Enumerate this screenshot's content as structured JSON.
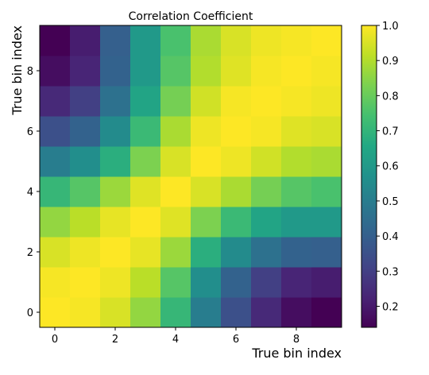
{
  "chart_data": {
    "type": "heatmap",
    "title": "Correlation Coefficient",
    "xlabel": "True bin index",
    "ylabel": "True bin index",
    "x_ticks": [
      0,
      2,
      4,
      6,
      8
    ],
    "y_ticks": [
      0,
      2,
      4,
      6,
      8
    ],
    "colorbar": {
      "colormap": "viridis",
      "range": [
        0.14,
        1.0
      ],
      "ticks": [
        0.2,
        0.3,
        0.4,
        0.5,
        0.6,
        0.7,
        0.8,
        0.9,
        1.0
      ],
      "tick_labels": [
        "0.2",
        "0.3",
        "0.4",
        "0.5",
        "0.6",
        "0.7",
        "0.8",
        "0.9",
        "1.0"
      ]
    },
    "origin": "lower",
    "matrix": [
      [
        1.0,
        0.99,
        0.95,
        0.86,
        0.71,
        0.5,
        0.35,
        0.24,
        0.17,
        0.14
      ],
      [
        0.99,
        1.0,
        0.98,
        0.91,
        0.77,
        0.56,
        0.41,
        0.3,
        0.23,
        0.21
      ],
      [
        0.95,
        0.98,
        1.0,
        0.97,
        0.87,
        0.68,
        0.55,
        0.46,
        0.41,
        0.4
      ],
      [
        0.86,
        0.91,
        0.97,
        1.0,
        0.96,
        0.83,
        0.72,
        0.64,
        0.6,
        0.6
      ],
      [
        0.71,
        0.77,
        0.87,
        0.96,
        1.0,
        0.95,
        0.89,
        0.82,
        0.77,
        0.75
      ],
      [
        0.5,
        0.56,
        0.68,
        0.83,
        0.95,
        1.0,
        0.98,
        0.94,
        0.9,
        0.89
      ],
      [
        0.35,
        0.41,
        0.55,
        0.72,
        0.89,
        0.98,
        1.0,
        0.99,
        0.96,
        0.95
      ],
      [
        0.24,
        0.3,
        0.46,
        0.64,
        0.82,
        0.94,
        0.99,
        1.0,
        0.99,
        0.98
      ],
      [
        0.17,
        0.23,
        0.41,
        0.6,
        0.77,
        0.9,
        0.96,
        0.99,
        1.0,
        0.99
      ],
      [
        0.14,
        0.21,
        0.4,
        0.6,
        0.75,
        0.89,
        0.95,
        0.98,
        0.99,
        1.0
      ]
    ]
  }
}
